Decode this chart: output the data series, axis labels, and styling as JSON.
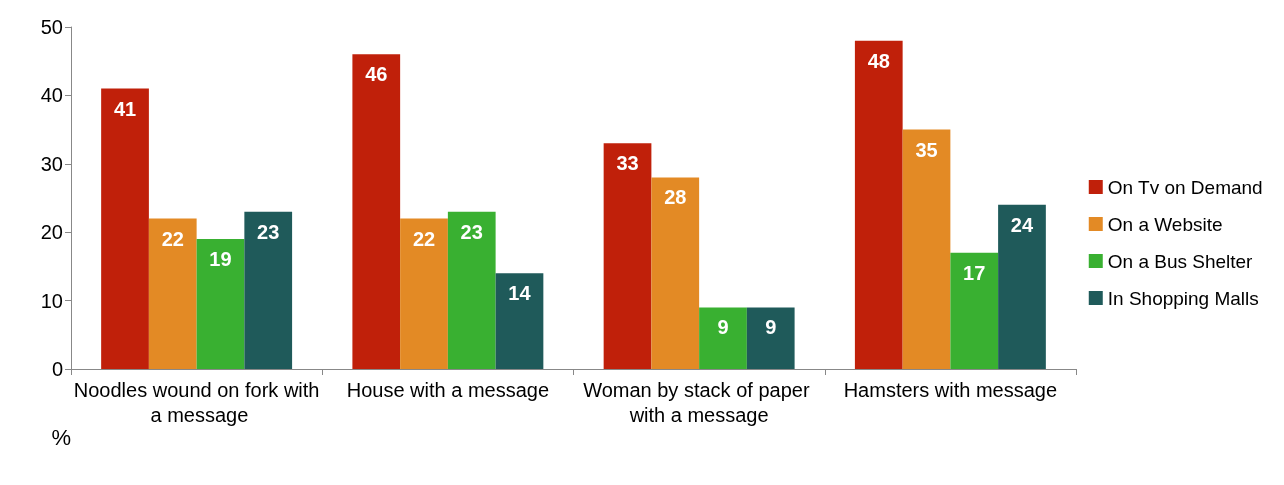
{
  "chart_data": {
    "type": "bar",
    "ylabel": "%",
    "categories": [
      "Noodles wound on fork with a message",
      "House with a message",
      "Woman by stack of paper with a message",
      "Hamsters with message"
    ],
    "series": [
      {
        "name": "On Tv on Demand",
        "color": "#c0200a",
        "values": [
          41,
          46,
          33,
          48
        ]
      },
      {
        "name": "On a Website",
        "color": "#e38a25",
        "values": [
          22,
          22,
          28,
          35
        ]
      },
      {
        "name": "On a Bus Shelter",
        "color": "#39b031",
        "values": [
          19,
          23,
          9,
          17
        ]
      },
      {
        "name": "In Shopping Malls",
        "color": "#1f5a5a",
        "values": [
          23,
          14,
          9,
          24
        ]
      }
    ],
    "ylim": [
      0,
      50
    ],
    "yticks": [
      0,
      10,
      20,
      30,
      40,
      50
    ],
    "grid": false,
    "legend": "right",
    "data_labels": true
  }
}
